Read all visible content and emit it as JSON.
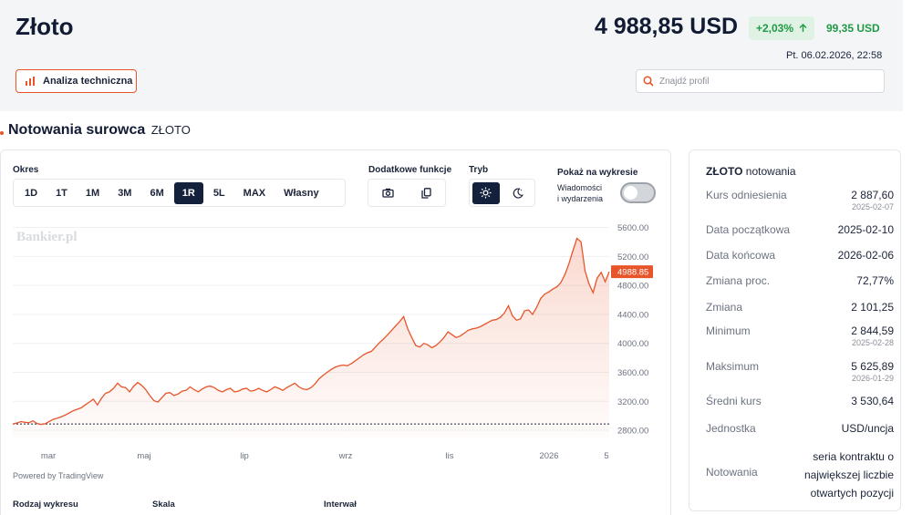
{
  "header": {
    "title": "Złoto",
    "price": "4 988,85 USD",
    "change_pct": "+2,03%",
    "change_abs": "99,35 USD",
    "datetime": "Pt. 06.02.2026, 22:58",
    "tech_button": "Analiza techniczna",
    "search_placeholder": "Znajdź profil"
  },
  "section": {
    "title": "Notowania surowca",
    "subtitle": "ZŁOTO"
  },
  "controls": {
    "period_label": "Okres",
    "periods": [
      "1D",
      "1T",
      "1M",
      "3M",
      "6M",
      "1R",
      "5L",
      "MAX",
      "Własny"
    ],
    "active_period": "1R",
    "extra_label": "Dodatkowe funkcje",
    "mode_label": "Tryb",
    "show_label": "Pokaż na wykresie",
    "news_label_1": "Wiadomości",
    "news_label_2": "i wydarzenia"
  },
  "chart_data": {
    "type": "area",
    "watermark": "Bankier.pl",
    "powered_by": "Powered by TradingView",
    "x_ticks": [
      "mar",
      "maj",
      "lip",
      "wrz",
      "lis",
      "2026",
      "5"
    ],
    "y_ticks": [
      "5600.00",
      "5200.00",
      "4800.00",
      "4400.00",
      "4000.00",
      "3600.00",
      "3200.00",
      "2800.00"
    ],
    "ylim": [
      2700,
      5720
    ],
    "last_value_label": "4988.85",
    "baseline": 2887.6,
    "line_color": "#e8552a",
    "series": [
      {
        "values": [
          2888,
          2900,
          2920,
          2910,
          2905,
          2930,
          2895,
          2880,
          2890,
          2920,
          2950,
          2965,
          2985,
          3010,
          3040,
          3070,
          3090,
          3110,
          3150,
          3190,
          3230,
          3150,
          3240,
          3310,
          3330,
          3380,
          3450,
          3400,
          3390,
          3330,
          3410,
          3460,
          3420,
          3360,
          3280,
          3210,
          3190,
          3250,
          3310,
          3320,
          3280,
          3300,
          3340,
          3350,
          3400,
          3360,
          3330,
          3370,
          3400,
          3410,
          3390,
          3350,
          3330,
          3360,
          3380,
          3330,
          3340,
          3370,
          3380,
          3340,
          3350,
          3380,
          3350,
          3330,
          3360,
          3400,
          3380,
          3350,
          3390,
          3420,
          3450,
          3400,
          3370,
          3360,
          3390,
          3440,
          3510,
          3560,
          3600,
          3640,
          3670,
          3690,
          3700,
          3690,
          3720,
          3760,
          3800,
          3840,
          3870,
          3890,
          3950,
          4010,
          4060,
          4120,
          4180,
          4240,
          4300,
          4370,
          4200,
          4080,
          3970,
          3950,
          4000,
          3980,
          3940,
          3970,
          4020,
          4080,
          4160,
          4120,
          4080,
          4100,
          4140,
          4180,
          4200,
          4210,
          4230,
          4260,
          4290,
          4320,
          4330,
          4360,
          4420,
          4520,
          4380,
          4320,
          4340,
          4450,
          4460,
          4400,
          4500,
          4620,
          4680,
          4710,
          4750,
          4780,
          4840,
          4950,
          5100,
          5280,
          5450,
          5400,
          5000,
          4820,
          4700,
          4900,
          4980,
          4850,
          4988.85
        ]
      }
    ]
  },
  "panel": {
    "title_bold": "ZŁOTO",
    "title_rest": "notowania",
    "rows": [
      {
        "label": "Kurs odniesienia",
        "value": "2 887,60",
        "date": "2025-02-07"
      },
      {
        "label": "Data początkowa",
        "value": "2025-02-10"
      },
      {
        "label": "Data końcowa",
        "value": "2026-02-06"
      },
      {
        "label": "Zmiana proc.",
        "value": "72,77%"
      },
      {
        "label": "Zmiana",
        "value": "2 101,25"
      },
      {
        "label": "Minimum",
        "value": "2 844,59",
        "date": "2025-02-28"
      },
      {
        "label": "Maksimum",
        "value": "5 625,89",
        "date": "2026-01-29"
      },
      {
        "label": "Średni kurs",
        "value": "3 530,64"
      },
      {
        "label": "Jednostka",
        "value": "USD/uncja"
      },
      {
        "label": "Notowania",
        "value_lines": [
          "seria kontraktu o",
          "największej liczbie",
          "otwartych pozycji"
        ]
      }
    ]
  },
  "bottom": {
    "chart_type_label": "Rodzaj wykresu",
    "scale_label": "Skala",
    "interval_label": "Interwał"
  },
  "colors": {
    "accent": "#e8552a",
    "navy": "#14213d",
    "positive": "#1f9a45"
  }
}
